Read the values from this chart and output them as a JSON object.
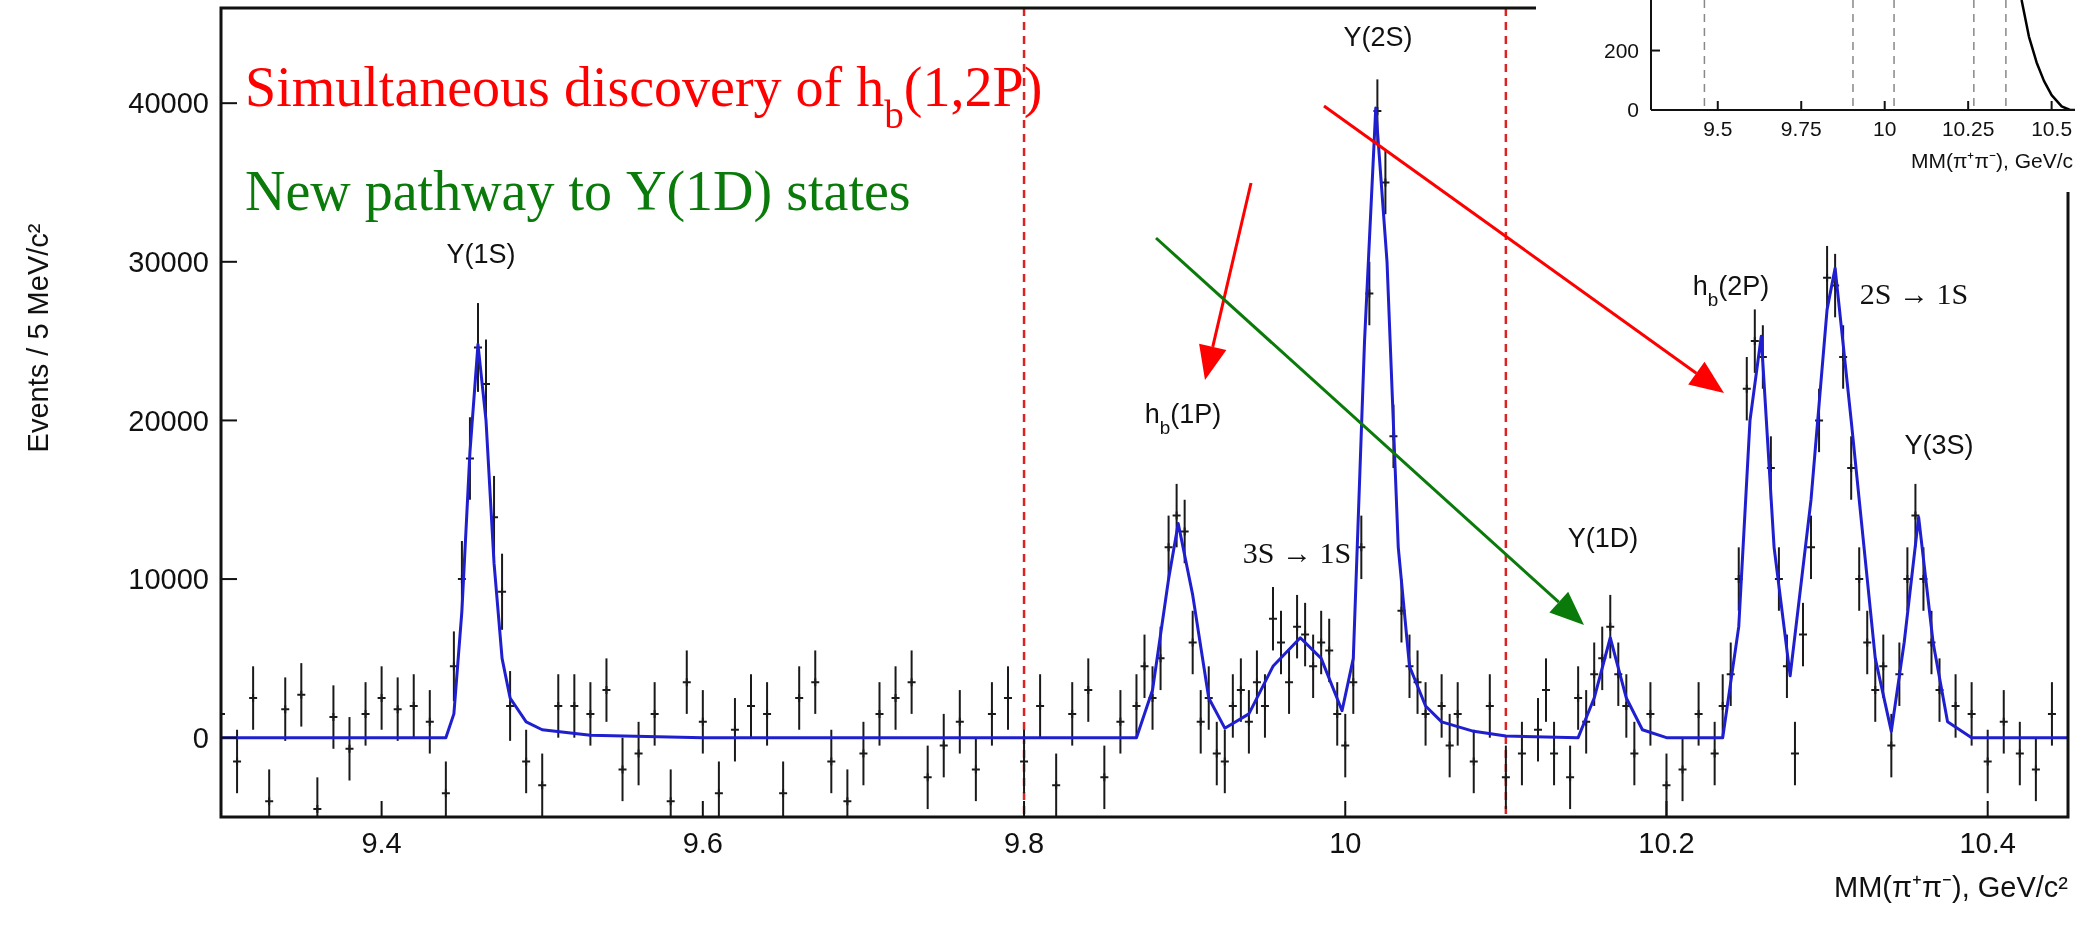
{
  "chart_data": [
    {
      "type": "scatter",
      "xlabel": "MM(π⁺π⁻), GeV/c²",
      "ylabel": "Events / 5 MeV/c²",
      "xlim": [
        9.3,
        10.45
      ],
      "xticks": [
        9.4,
        9.6,
        9.8,
        10,
        10.2,
        10.4
      ],
      "ylim": [
        -5000,
        46000
      ],
      "yticks": [
        0,
        10000,
        20000,
        30000,
        40000
      ],
      "grid": false,
      "series": [
        {
          "type": "scatter",
          "color": "#1a1a1a",
          "marker": "cross",
          "x": [
            9.3,
            9.31,
            9.32,
            9.33,
            9.34,
            9.35,
            9.36,
            9.37,
            9.38,
            9.39,
            9.4,
            9.41,
            9.42,
            9.43,
            9.44,
            9.445,
            9.45,
            9.455,
            9.46,
            9.465,
            9.47,
            9.475,
            9.48,
            9.49,
            9.5,
            9.51,
            9.52,
            9.53,
            9.54,
            9.55,
            9.56,
            9.57,
            9.58,
            9.59,
            9.6,
            9.61,
            9.62,
            9.63,
            9.64,
            9.65,
            9.66,
            9.67,
            9.68,
            9.69,
            9.7,
            9.71,
            9.72,
            9.73,
            9.74,
            9.75,
            9.76,
            9.77,
            9.78,
            9.79,
            9.8,
            9.81,
            9.82,
            9.83,
            9.84,
            9.85,
            9.86,
            9.87,
            9.875,
            9.88,
            9.885,
            9.89,
            9.895,
            9.9,
            9.905,
            9.91,
            9.915,
            9.92,
            9.925,
            9.93,
            9.935,
            9.94,
            9.945,
            9.95,
            9.955,
            9.96,
            9.965,
            9.97,
            9.975,
            9.98,
            9.985,
            9.99,
            9.995,
            10.0,
            10.005,
            10.01,
            10.015,
            10.02,
            10.025,
            10.03,
            10.035,
            10.04,
            10.045,
            10.05,
            10.06,
            10.065,
            10.07,
            10.08,
            10.09,
            10.1,
            10.11,
            10.12,
            10.125,
            10.13,
            10.14,
            10.145,
            10.15,
            10.155,
            10.16,
            10.165,
            10.17,
            10.175,
            10.18,
            10.19,
            10.2,
            10.21,
            10.22,
            10.23,
            10.235,
            10.24,
            10.245,
            10.25,
            10.255,
            10.26,
            10.265,
            10.27,
            10.275,
            10.28,
            10.285,
            10.29,
            10.295,
            10.3,
            10.305,
            10.31,
            10.315,
            10.32,
            10.325,
            10.33,
            10.335,
            10.34,
            10.345,
            10.35,
            10.355,
            10.36,
            10.365,
            10.37,
            10.38,
            10.39,
            10.4,
            10.41,
            10.42,
            10.43,
            10.44
          ],
          "values": [
            1500,
            -1500,
            2500,
            -4000,
            1800,
            2700,
            -4500,
            1300,
            -700,
            1500,
            2500,
            1800,
            2000,
            1000,
            -3500,
            4500,
            10000,
            17600,
            24600,
            22300,
            13900,
            9200,
            2000,
            -1500,
            -3000,
            2000,
            2000,
            1500,
            3000,
            -2000,
            -1000,
            1500,
            -4000,
            3500,
            1000,
            -3500,
            500,
            2000,
            1500,
            -3500,
            2500,
            3500,
            -1500,
            -4000,
            -1000,
            1500,
            2500,
            3500,
            -2500,
            -500,
            1000,
            -2000,
            1500,
            2500,
            -1500,
            2000,
            -3000,
            1500,
            3000,
            -2500,
            1000,
            2000,
            4500,
            2500,
            5000,
            12000,
            14000,
            13000,
            6000,
            1000,
            2500,
            -1000,
            -1500,
            2000,
            3000,
            1000,
            3500,
            2000,
            7500,
            6000,
            3500,
            7000,
            6500,
            4500,
            6000,
            5500,
            1500,
            -500,
            3500,
            12000,
            28000,
            39500,
            35000,
            19000,
            8000,
            4500,
            3500,
            1500,
            2000,
            -500,
            1500,
            -1500,
            2000,
            -2500,
            -1000,
            500,
            3000,
            -1000,
            -2500,
            2500,
            1000,
            4000,
            5000,
            7000,
            4000,
            2000,
            -1000,
            1500,
            -3000,
            -2000,
            1500,
            -1000,
            2000,
            4000,
            10000,
            22000,
            25000,
            24000,
            17000,
            10000,
            4500,
            -1000,
            6500,
            12000,
            20000,
            29000,
            28500,
            24000,
            17000,
            10000,
            6000,
            3000,
            4500,
            -500,
            4000,
            10000,
            14000,
            10000,
            6000,
            3000,
            2000,
            1500,
            -1500,
            1000,
            -1000,
            -2000,
            1500
          ],
          "errors": [
            2000,
            2000,
            2000,
            2000,
            2000,
            2000,
            2000,
            2000,
            2000,
            2000,
            2000,
            2000,
            2000,
            2000,
            2000,
            2200,
            2400,
            2600,
            2800,
            2800,
            2600,
            2400,
            2200,
            2000,
            2000,
            2000,
            2000,
            2000,
            2000,
            2000,
            2000,
            2000,
            2000,
            2000,
            2000,
            2000,
            2000,
            2000,
            2000,
            2000,
            2000,
            2000,
            2000,
            2000,
            2000,
            2000,
            2000,
            2000,
            2000,
            2000,
            2000,
            2000,
            2000,
            2000,
            2000,
            2000,
            2000,
            2000,
            2000,
            2000,
            2000,
            2000,
            2000,
            2000,
            2000,
            2000,
            2000,
            2000,
            2000,
            2000,
            2000,
            2000,
            2000,
            2000,
            2000,
            2000,
            2000,
            2000,
            2000,
            2000,
            2000,
            2000,
            2000,
            2000,
            2000,
            2000,
            2000,
            2000,
            2000,
            2000,
            2000,
            2000,
            2000,
            2000,
            2000,
            2000,
            2000,
            2000,
            2000,
            2000,
            2000,
            2000,
            2000,
            2000,
            2000,
            2000,
            2000,
            2000,
            2000,
            2000,
            2000,
            2000,
            2000,
            2000,
            2000,
            2000,
            2000,
            2000,
            2000,
            2000,
            2000,
            2000,
            2000,
            2000,
            2000,
            2000,
            2000,
            2000,
            2000,
            2000,
            2000,
            2000,
            2000,
            2000,
            2000,
            2000,
            2000,
            2000,
            2000,
            2000,
            2000,
            2000,
            2000,
            2000,
            2000,
            2000,
            2000,
            2000,
            2000,
            2000,
            2000,
            2000,
            2000,
            2000,
            2000,
            2000,
            2000
          ]
        },
        {
          "type": "line",
          "color": "#1f1fd0",
          "marker": "none",
          "x": [
            9.3,
            9.44,
            9.445,
            9.45,
            9.455,
            9.46,
            9.465,
            9.47,
            9.475,
            9.48,
            9.49,
            9.5,
            9.53,
            9.6,
            9.87,
            9.88,
            9.89,
            9.896,
            9.905,
            9.915,
            9.925,
            9.94,
            9.955,
            9.972,
            9.985,
            9.998,
            10.005,
            10.012,
            10.019,
            10.026,
            10.033,
            10.04,
            10.05,
            10.06,
            10.08,
            10.1,
            10.145,
            10.155,
            10.165,
            10.175,
            10.185,
            10.2,
            10.235,
            10.245,
            10.252,
            10.259,
            10.267,
            10.277,
            10.29,
            10.3,
            10.305,
            10.315,
            10.33,
            10.34,
            10.348,
            10.357,
            10.366,
            10.375,
            10.39,
            10.45
          ],
          "values": [
            0,
            0,
            1500,
            8000,
            18000,
            24800,
            20000,
            11000,
            5000,
            2500,
            1000,
            500,
            150,
            0,
            0,
            3000,
            10000,
            13500,
            9000,
            2500,
            600,
            1500,
            4500,
            6300,
            5000,
            1700,
            5000,
            25000,
            39700,
            30000,
            12000,
            4500,
            2000,
            1000,
            400,
            100,
            0,
            2500,
            6300,
            2500,
            500,
            0,
            0,
            7000,
            20000,
            25300,
            12000,
            3900,
            15000,
            27000,
            29600,
            20000,
            5000,
            400,
            6000,
            13900,
            6000,
            1000,
            0,
            0
          ]
        }
      ],
      "ref_lines": [
        {
          "axis": "x",
          "value": 9.8,
          "color": "#dd2222",
          "line_style": "dashed"
        },
        {
          "axis": "x",
          "value": 10.1,
          "color": "#dd2222",
          "line_style": "dashed"
        }
      ],
      "annotations": [
        "Simultaneous discovery of h$_{b}$(1,2P)",
        "New pathway to Υ(1D) states",
        "Υ(1S)",
        "Υ(2S)",
        "h$_{b}$(1P)",
        "3S → 1S",
        "Υ(1D)",
        "h$_{b}$(2P)",
        "2S → 1S",
        "Υ(3S)"
      ]
    },
    {
      "type": "line",
      "xlabel": "MM(π⁺π⁻), GeV/c",
      "xlim": [
        9.3,
        10.57
      ],
      "xticks": [
        9.5,
        9.75,
        10,
        10.25,
        10.5
      ],
      "ylim": [
        0,
        370
      ],
      "yticks": [
        0,
        200
      ],
      "grid": false,
      "series": [
        {
          "type": "line",
          "color": "#000000",
          "marker": "none",
          "x": [
            10.41,
            10.432,
            10.455,
            10.477,
            10.5,
            10.53,
            10.555,
            10.57
          ],
          "values": [
            370,
            247,
            160,
            98,
            50,
            12,
            0,
            0
          ]
        }
      ],
      "ref_lines": [
        {
          "axis": "x",
          "value": 9.46,
          "color": "#888888",
          "line_style": "dashed"
        },
        {
          "axis": "x",
          "value": 9.905,
          "color": "#888888",
          "line_style": "dashed"
        },
        {
          "axis": "x",
          "value": 10.028,
          "color": "#888888",
          "line_style": "dashed"
        },
        {
          "axis": "x",
          "value": 10.267,
          "color": "#888888",
          "line_style": "dashed"
        },
        {
          "axis": "x",
          "value": 10.363,
          "color": "#888888",
          "line_style": "dashed"
        }
      ]
    }
  ]
}
